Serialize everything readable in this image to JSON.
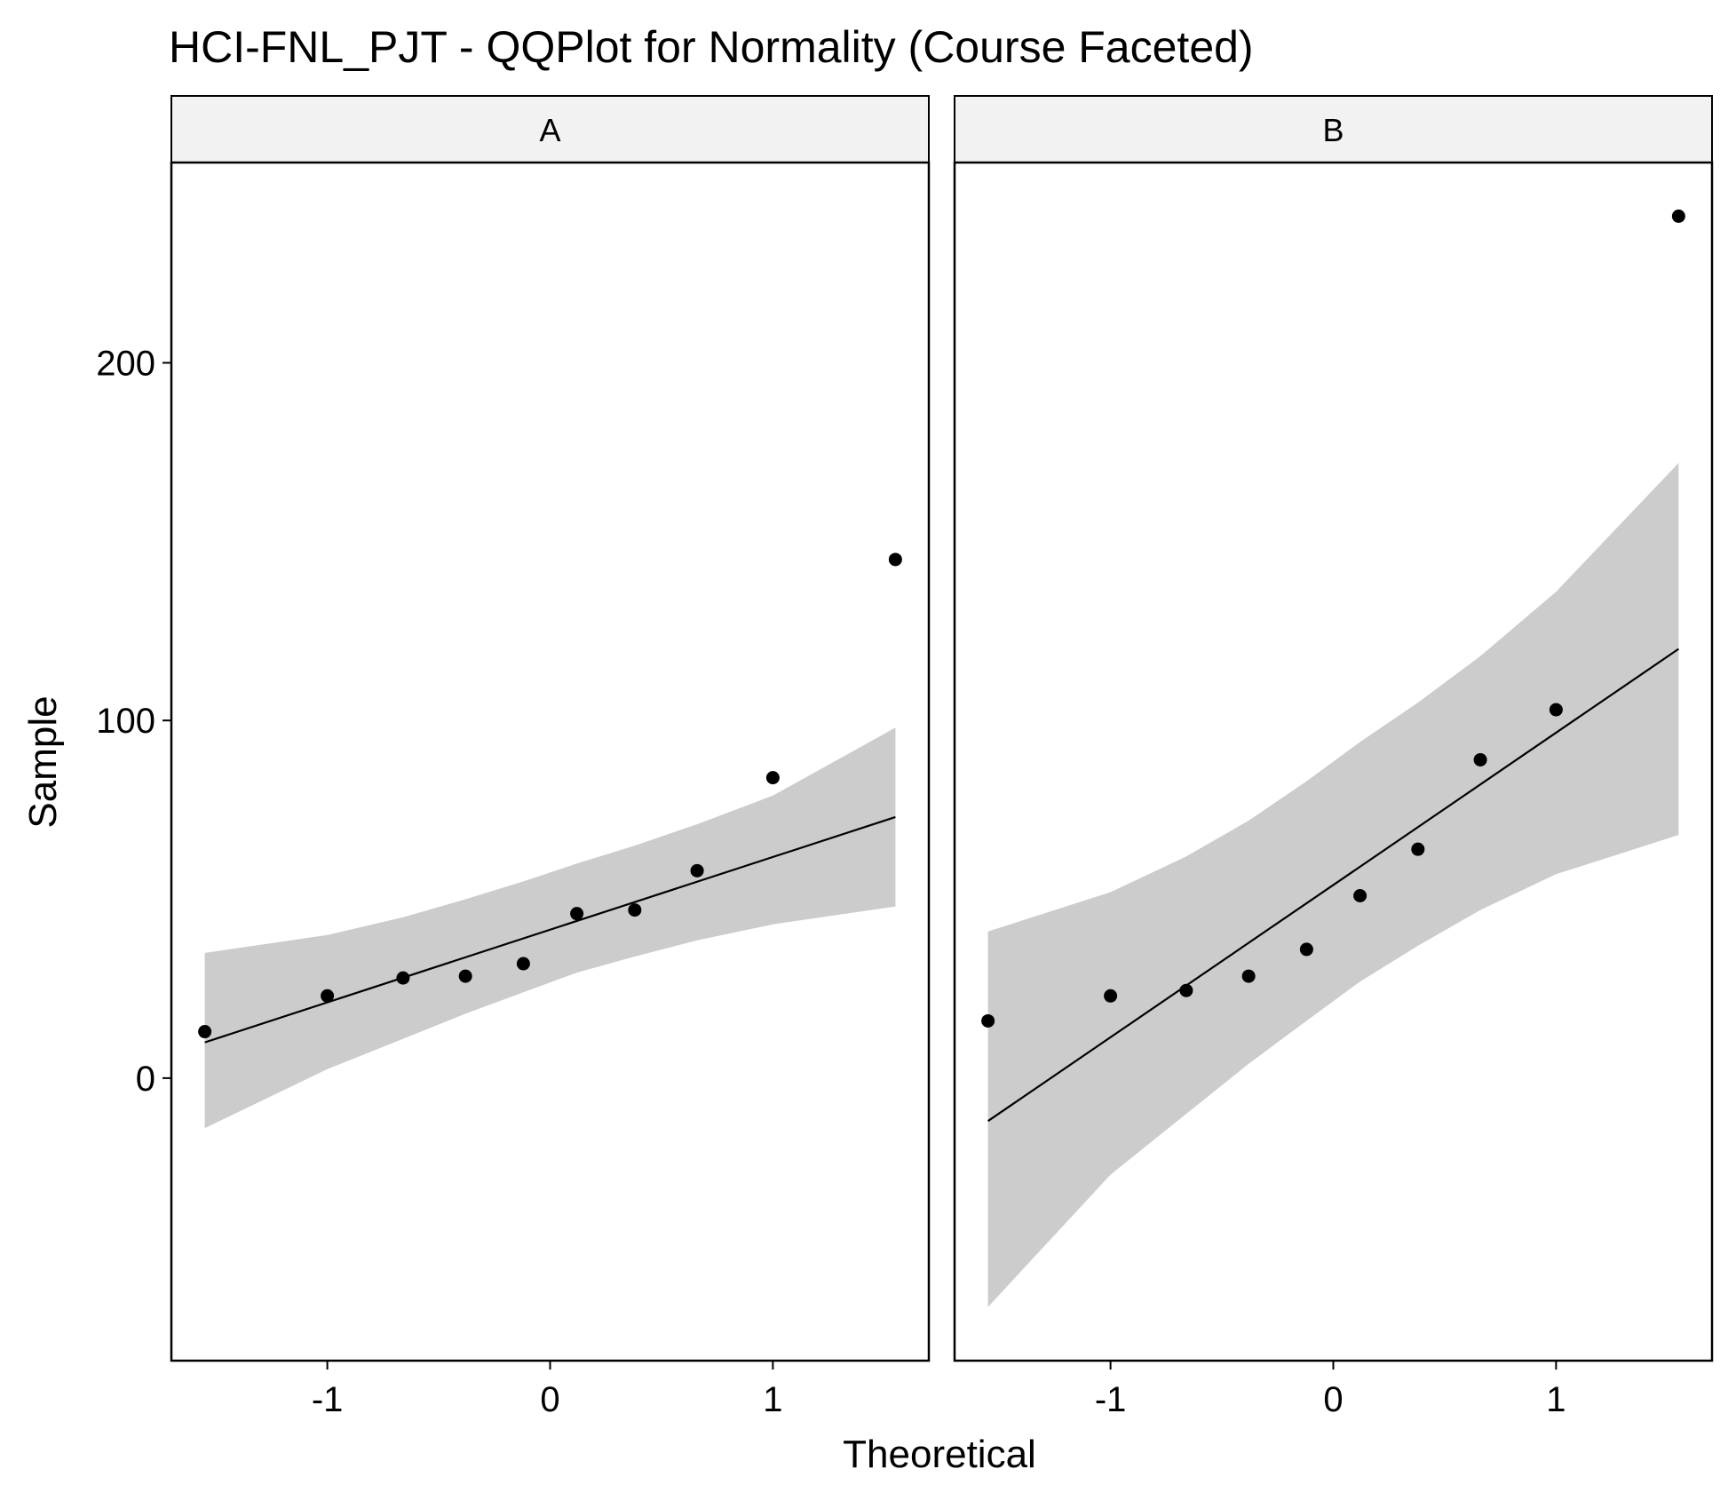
{
  "chart_data": {
    "type": "scatter",
    "title": "HCI-FNL_PJT - QQPlot for Normality (Course Faceted)",
    "xlabel": "Theoretical",
    "ylabel": "Sample",
    "xlim": [
      -1.7,
      1.7
    ],
    "ylim": [
      -79,
      256
    ],
    "x_ticks": [
      -1,
      0,
      1
    ],
    "x_tick_labels": [
      "-1",
      "0",
      "1"
    ],
    "y_ticks": [
      0,
      100,
      200
    ],
    "y_tick_labels": [
      "0",
      "100",
      "200"
    ],
    "grid": false,
    "legend": "none",
    "panels": [
      {
        "facet": "A",
        "points": [
          {
            "x": -1.55,
            "y": 13
          },
          {
            "x": -1.0,
            "y": 23
          },
          {
            "x": -0.66,
            "y": 28
          },
          {
            "x": -0.38,
            "y": 28.5
          },
          {
            "x": -0.12,
            "y": 32
          },
          {
            "x": 0.12,
            "y": 46
          },
          {
            "x": 0.38,
            "y": 47
          },
          {
            "x": 0.66,
            "y": 58
          },
          {
            "x": 1.0,
            "y": 84
          },
          {
            "x": 1.55,
            "y": 145
          }
        ],
        "reference_line": {
          "x": [
            -1.55,
            1.55
          ],
          "y": [
            10,
            73
          ]
        },
        "band": {
          "x": [
            -1.55,
            -1.0,
            -0.66,
            -0.38,
            -0.12,
            0.12,
            0.38,
            0.66,
            1.0,
            1.55
          ],
          "lower": [
            -14,
            2.5,
            11,
            18,
            24,
            29.5,
            34,
            38.5,
            43,
            48
          ],
          "upper": [
            35,
            40,
            45,
            50,
            55,
            60,
            65,
            71,
            79,
            98
          ]
        }
      },
      {
        "facet": "B",
        "points": [
          {
            "x": -1.55,
            "y": 16
          },
          {
            "x": -1.0,
            "y": 23
          },
          {
            "x": -0.66,
            "y": 24.5
          },
          {
            "x": -0.38,
            "y": 28.5
          },
          {
            "x": -0.12,
            "y": 36
          },
          {
            "x": 0.12,
            "y": 51
          },
          {
            "x": 0.38,
            "y": 64
          },
          {
            "x": 0.66,
            "y": 89
          },
          {
            "x": 1.0,
            "y": 103
          },
          {
            "x": 1.55,
            "y": 241
          }
        ],
        "reference_line": {
          "x": [
            -1.55,
            1.55
          ],
          "y": [
            -12,
            120
          ]
        },
        "band": {
          "x": [
            -1.55,
            -1.0,
            -0.66,
            -0.38,
            -0.12,
            0.12,
            0.38,
            0.66,
            1.0,
            1.55
          ],
          "lower": [
            -64,
            -27,
            -10,
            4,
            16,
            27,
            37,
            47,
            57,
            68
          ],
          "upper": [
            41,
            52,
            62,
            72,
            83,
            94,
            105,
            118,
            136,
            172
          ]
        }
      }
    ],
    "colors": {
      "points": "#000000",
      "line": "#000000",
      "band": "#cccccc",
      "strip_fill": "#f2f2f2",
      "panel_border": "#000000"
    }
  }
}
